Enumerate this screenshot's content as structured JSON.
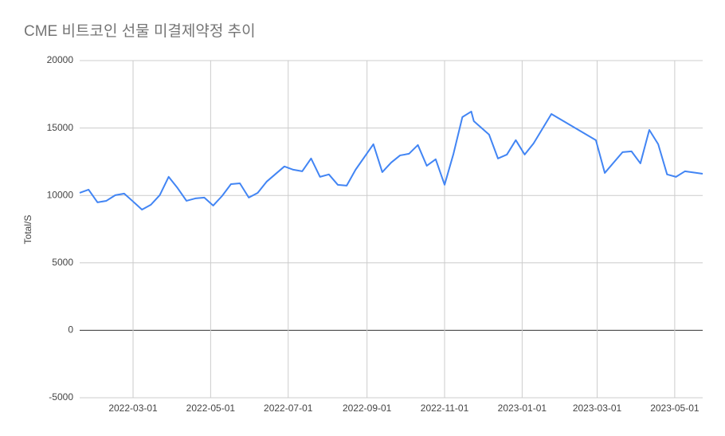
{
  "chart_data": {
    "type": "line",
    "title": "CME 비트코인 선물 미결제약정 추이",
    "y_label": "Total/S",
    "x": [
      "2022-01-18",
      "2022-01-25",
      "2022-02-01",
      "2022-02-08",
      "2022-02-15",
      "2022-02-22",
      "2022-03-01",
      "2022-03-08",
      "2022-03-15",
      "2022-03-22",
      "2022-03-29",
      "2022-04-05",
      "2022-04-12",
      "2022-04-19",
      "2022-04-26",
      "2022-05-03",
      "2022-05-10",
      "2022-05-17",
      "2022-05-24",
      "2022-05-31",
      "2022-06-07",
      "2022-06-14",
      "2022-06-28",
      "2022-07-05",
      "2022-07-12",
      "2022-07-19",
      "2022-07-26",
      "2022-08-02",
      "2022-08-09",
      "2022-08-16",
      "2022-08-23",
      "2022-09-06",
      "2022-09-13",
      "2022-09-20",
      "2022-09-27",
      "2022-10-04",
      "2022-10-11",
      "2022-10-18",
      "2022-10-25",
      "2022-11-01",
      "2022-11-08",
      "2022-11-15",
      "2022-11-22",
      "2022-11-24",
      "2022-12-06",
      "2022-12-13",
      "2022-12-20",
      "2022-12-27",
      "2023-01-03",
      "2023-01-10",
      "2023-01-24",
      "2023-02-28",
      "2023-03-07",
      "2023-03-21",
      "2023-03-28",
      "2023-04-04",
      "2023-04-11",
      "2023-04-18",
      "2023-04-25",
      "2023-05-02",
      "2023-05-09",
      "2023-05-23"
    ],
    "series": [
      {
        "name": "Total/S",
        "color": "#4285f4",
        "values": [
          10190,
          10430,
          9490,
          9600,
          10020,
          10140,
          9550,
          8950,
          9310,
          10020,
          11380,
          10550,
          9600,
          9780,
          9840,
          9250,
          9960,
          10840,
          10900,
          9840,
          10190,
          11020,
          12150,
          11910,
          11790,
          12740,
          11380,
          11560,
          10790,
          10730,
          11910,
          13800,
          11730,
          12440,
          12970,
          13090,
          13740,
          12200,
          12680,
          10790,
          13090,
          15810,
          16220,
          15510,
          14510,
          12740,
          13030,
          14100,
          13030,
          13860,
          16040,
          14100,
          11670,
          13210,
          13270,
          12380,
          14860,
          13800,
          11560,
          11380,
          11790,
          11610
        ]
      }
    ],
    "xlim": [
      "2022-01-18",
      "2023-05-23"
    ],
    "xticks": [
      "2022-03-01",
      "2022-05-01",
      "2022-07-01",
      "2022-09-01",
      "2022-11-01",
      "2023-01-01",
      "2023-03-01",
      "2023-05-01"
    ],
    "ylim": [
      -5000,
      20000
    ],
    "yticks": [
      -5000,
      0,
      5000,
      10000,
      15000,
      20000
    ],
    "grid": true
  }
}
